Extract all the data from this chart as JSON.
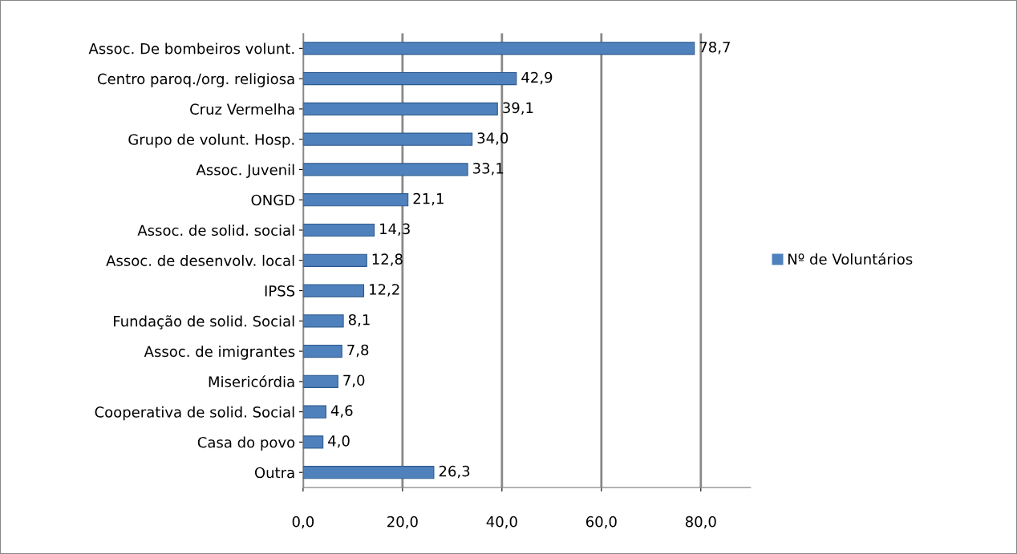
{
  "chart_data": {
    "type": "bar",
    "orientation": "horizontal",
    "categories": [
      "Assoc. De bombeiros volunt.",
      "Centro paroq./org. religiosa",
      "Cruz Vermelha",
      "Grupo de volunt. Hosp.",
      "Assoc. Juvenil",
      "ONGD",
      "Assoc. de solid. social",
      "Assoc. de desenvolv. local",
      "IPSS",
      "Fundação de solid. Social",
      "Assoc. de imigrantes",
      "Misericórdia",
      "Cooperativa de solid. Social",
      "Casa do povo",
      "Outra"
    ],
    "series": [
      {
        "name": "Nº de Voluntários",
        "color": "#4f81bd",
        "values": [
          78.7,
          42.9,
          39.1,
          34.0,
          33.1,
          21.1,
          14.3,
          12.8,
          12.2,
          8.1,
          7.8,
          7.0,
          4.6,
          4.0,
          26.3
        ],
        "value_labels": [
          "78,7",
          "42,9",
          "39,1",
          "34,0",
          "33,1",
          "21,1",
          "14,3",
          "12,8",
          "12,2",
          "8,1",
          "7,8",
          "7,0",
          "4,6",
          "4,0",
          "26,3"
        ]
      }
    ],
    "xlim": [
      0,
      90
    ],
    "xticks": [
      {
        "value": 0,
        "label": "0,0"
      },
      {
        "value": 20,
        "label": "20,0"
      },
      {
        "value": 40,
        "label": "40,0"
      },
      {
        "value": 60,
        "label": "60,0"
      },
      {
        "value": 80,
        "label": "80,0"
      }
    ],
    "grid": "x",
    "legend": "right"
  }
}
